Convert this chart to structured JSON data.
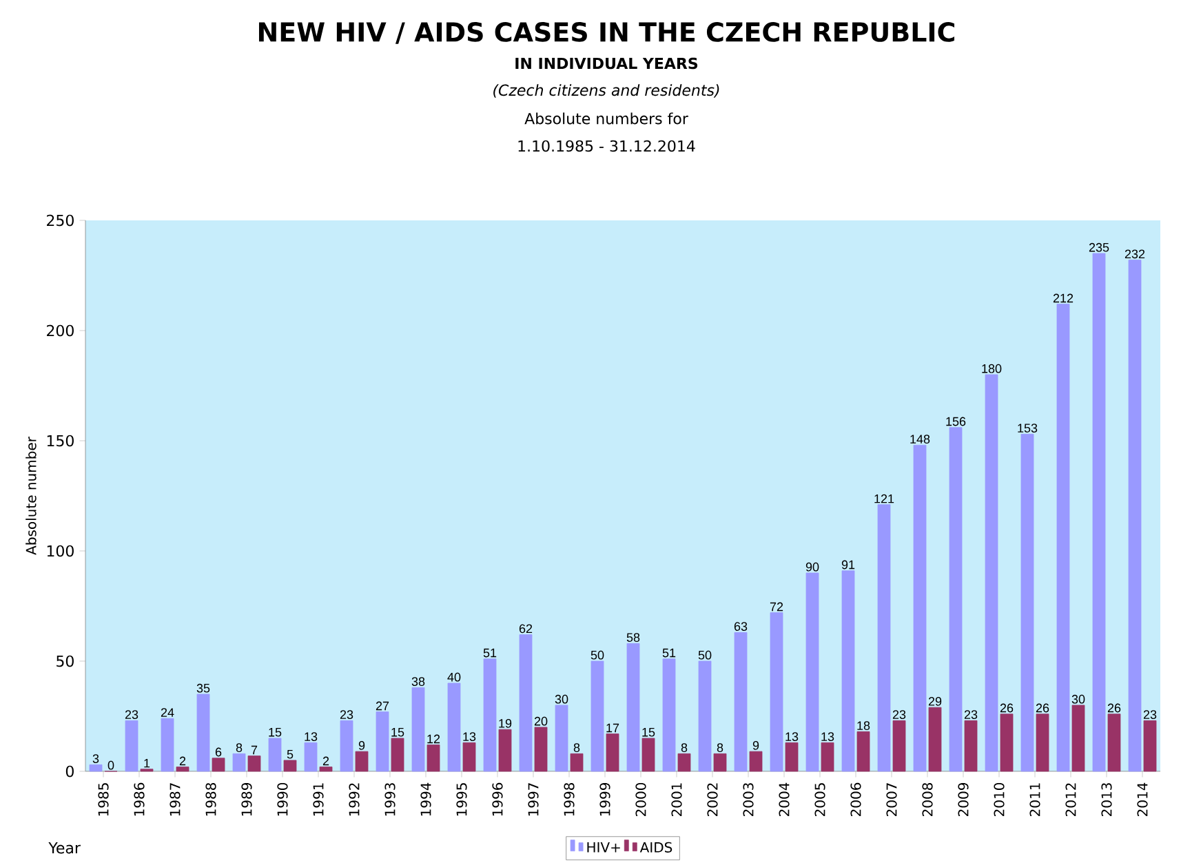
{
  "chart_data": {
    "type": "bar",
    "title": "NEW HIV / AIDS CASES IN THE CZECH REPUBLIC",
    "subtitle": "IN INDIVIDUAL YEARS",
    "annotations": [
      "(Czech citizens and residents)",
      "Absolute numbers for",
      "1.10.1985 - 31.12.2014"
    ],
    "xlabel": "Year",
    "ylabel": "Absolute number",
    "categories": [
      "1985",
      "1986",
      "1987",
      "1988",
      "1989",
      "1990",
      "1991",
      "1992",
      "1993",
      "1994",
      "1995",
      "1996",
      "1997",
      "1998",
      "1999",
      "2000",
      "2001",
      "2002",
      "2003",
      "2004",
      "2005",
      "2006",
      "2007",
      "2008",
      "2009",
      "2010",
      "2011",
      "2012",
      "2013",
      "2014"
    ],
    "series": [
      {
        "name": "HIV+",
        "color": "#9999ff",
        "values": [
          3,
          23,
          24,
          35,
          8,
          15,
          13,
          23,
          27,
          38,
          40,
          51,
          62,
          30,
          50,
          58,
          51,
          50,
          63,
          72,
          90,
          91,
          121,
          148,
          156,
          180,
          153,
          212,
          235,
          232
        ]
      },
      {
        "name": "AIDS",
        "color": "#993366",
        "values": [
          0,
          1,
          2,
          6,
          7,
          5,
          2,
          9,
          15,
          12,
          13,
          19,
          20,
          8,
          17,
          15,
          8,
          8,
          9,
          13,
          13,
          18,
          23,
          29,
          23,
          26,
          26,
          30,
          26,
          23
        ]
      }
    ],
    "ylim": [
      0,
      250
    ],
    "yticks": [
      0,
      50,
      100,
      150,
      200,
      250
    ],
    "data_labels": true,
    "legend": "bottom",
    "grid": false
  }
}
